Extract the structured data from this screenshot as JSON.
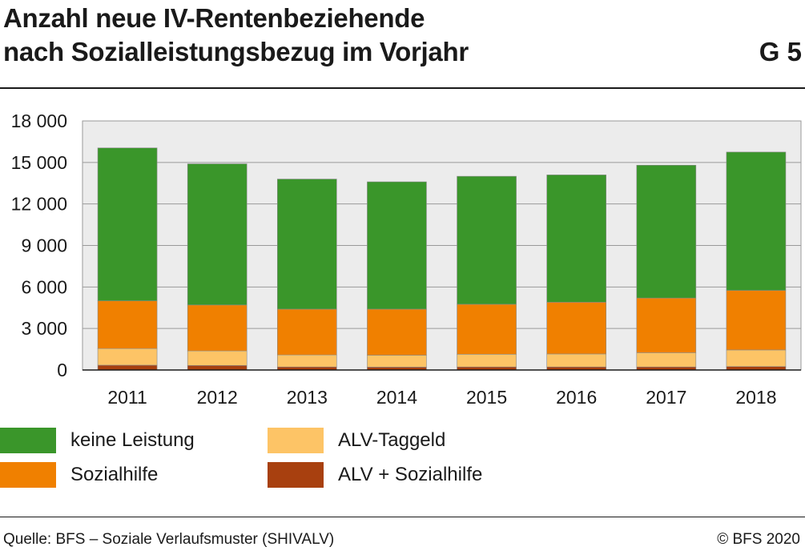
{
  "header": {
    "title_line1": "Anzahl neue IV-Rentenbeziehende",
    "title_line2": "nach Sozialleistungsbezug im Vorjahr",
    "code": "G 5"
  },
  "chart_data": {
    "type": "bar",
    "stacked": true,
    "categories": [
      "2011",
      "2012",
      "2013",
      "2014",
      "2015",
      "2016",
      "2017",
      "2018"
    ],
    "series": [
      {
        "name": "ALV + Sozialhilfe",
        "color": "#a8400f",
        "values": [
          350,
          330,
          220,
          210,
          220,
          220,
          220,
          250
        ]
      },
      {
        "name": "ALV-Taggeld",
        "color": "#fdc466",
        "values": [
          1200,
          1050,
          870,
          860,
          920,
          940,
          1030,
          1200
        ]
      },
      {
        "name": "Sozialhilfe",
        "color": "#f08000",
        "values": [
          3450,
          3320,
          3310,
          3330,
          3610,
          3740,
          3950,
          4300
        ]
      },
      {
        "name": "keine Leistung",
        "color": "#3a962a",
        "values": [
          11050,
          10200,
          9400,
          9200,
          9250,
          9200,
          9600,
          10000
        ]
      }
    ],
    "y_ticks": [
      "0",
      "3 000",
      "6 000",
      "9 000",
      "12 000",
      "15 000",
      "18 000"
    ],
    "ylim": [
      0,
      18000
    ],
    "grid": true,
    "legend": "bottom"
  },
  "legend": [
    {
      "label": "keine Leistung",
      "color": "#3a962a"
    },
    {
      "label": "Sozialhilfe",
      "color": "#f08000"
    },
    {
      "label": "ALV-Taggeld",
      "color": "#fdc466"
    },
    {
      "label": "ALV + Sozialhilfe",
      "color": "#a8400f"
    }
  ],
  "footer": {
    "source": "Quelle: BFS – Soziale Verlaufsmuster (SHIVALV)",
    "copyright": "© BFS 2020"
  }
}
